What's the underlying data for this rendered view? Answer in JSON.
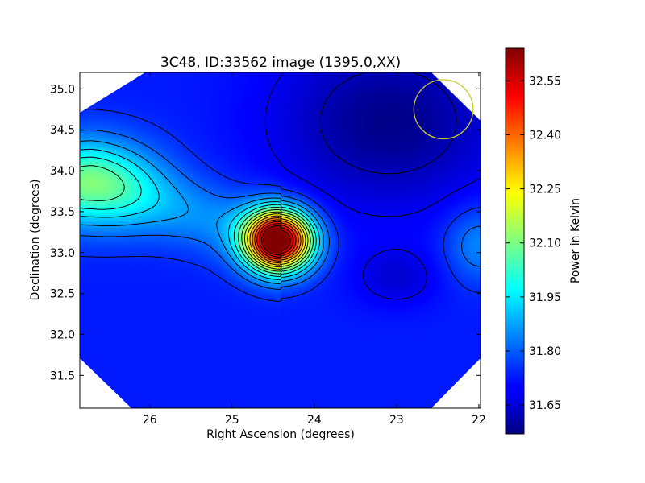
{
  "chart_data": {
    "type": "heatmap",
    "title": "3C48, ID:33562 image (1395.0,XX)",
    "xlabel": "Right Ascension (degrees)",
    "ylabel": "Declination (degrees)",
    "colorbar_label": "Power in Kelvin",
    "colormap": "jet",
    "xlim": [
      26.85,
      21.98
    ],
    "ylim": [
      31.1,
      35.2
    ],
    "x_ticks": [
      26,
      25,
      24,
      23,
      22
    ],
    "x_tick_labels": [
      "26",
      "25",
      "24",
      "23",
      "22"
    ],
    "y_ticks": [
      31.5,
      32.0,
      32.5,
      33.0,
      33.5,
      34.0,
      34.5,
      35.0
    ],
    "y_tick_labels": [
      "31.5",
      "32.0",
      "32.5",
      "33.0",
      "33.5",
      "34.0",
      "34.5",
      "35.0"
    ],
    "color_range": [
      31.57,
      32.64
    ],
    "colorbar_ticks": [
      31.65,
      31.8,
      31.95,
      32.1,
      32.25,
      32.4,
      32.55
    ],
    "colorbar_tick_labels": [
      "31.65",
      "31.80",
      "31.95",
      "32.10",
      "32.25",
      "32.40",
      "32.55"
    ],
    "peak": {
      "ra": 24.43,
      "dec": 33.15,
      "value": 32.62
    },
    "sources": [
      {
        "ra": 24.43,
        "dec": 33.15,
        "amp": 0.98,
        "sigma_ra": 0.4,
        "sigma_dec": 0.36
      },
      {
        "ra": 26.7,
        "dec": 33.85,
        "amp": 0.26,
        "sigma_ra": 0.8,
        "sigma_dec": 0.55
      },
      {
        "ra": 22.0,
        "dec": 33.1,
        "amp": 0.12,
        "sigma_ra": 0.4,
        "sigma_dec": 0.45
      }
    ],
    "background": {
      "base": 31.73,
      "min": 31.58,
      "low_center": {
        "ra": 23.1,
        "dec": 34.6
      }
    },
    "contour_color": "#000000",
    "beam": {
      "ra": 22.43,
      "dec": 34.75,
      "radius_deg": 0.36,
      "color": "#c8c832"
    }
  }
}
